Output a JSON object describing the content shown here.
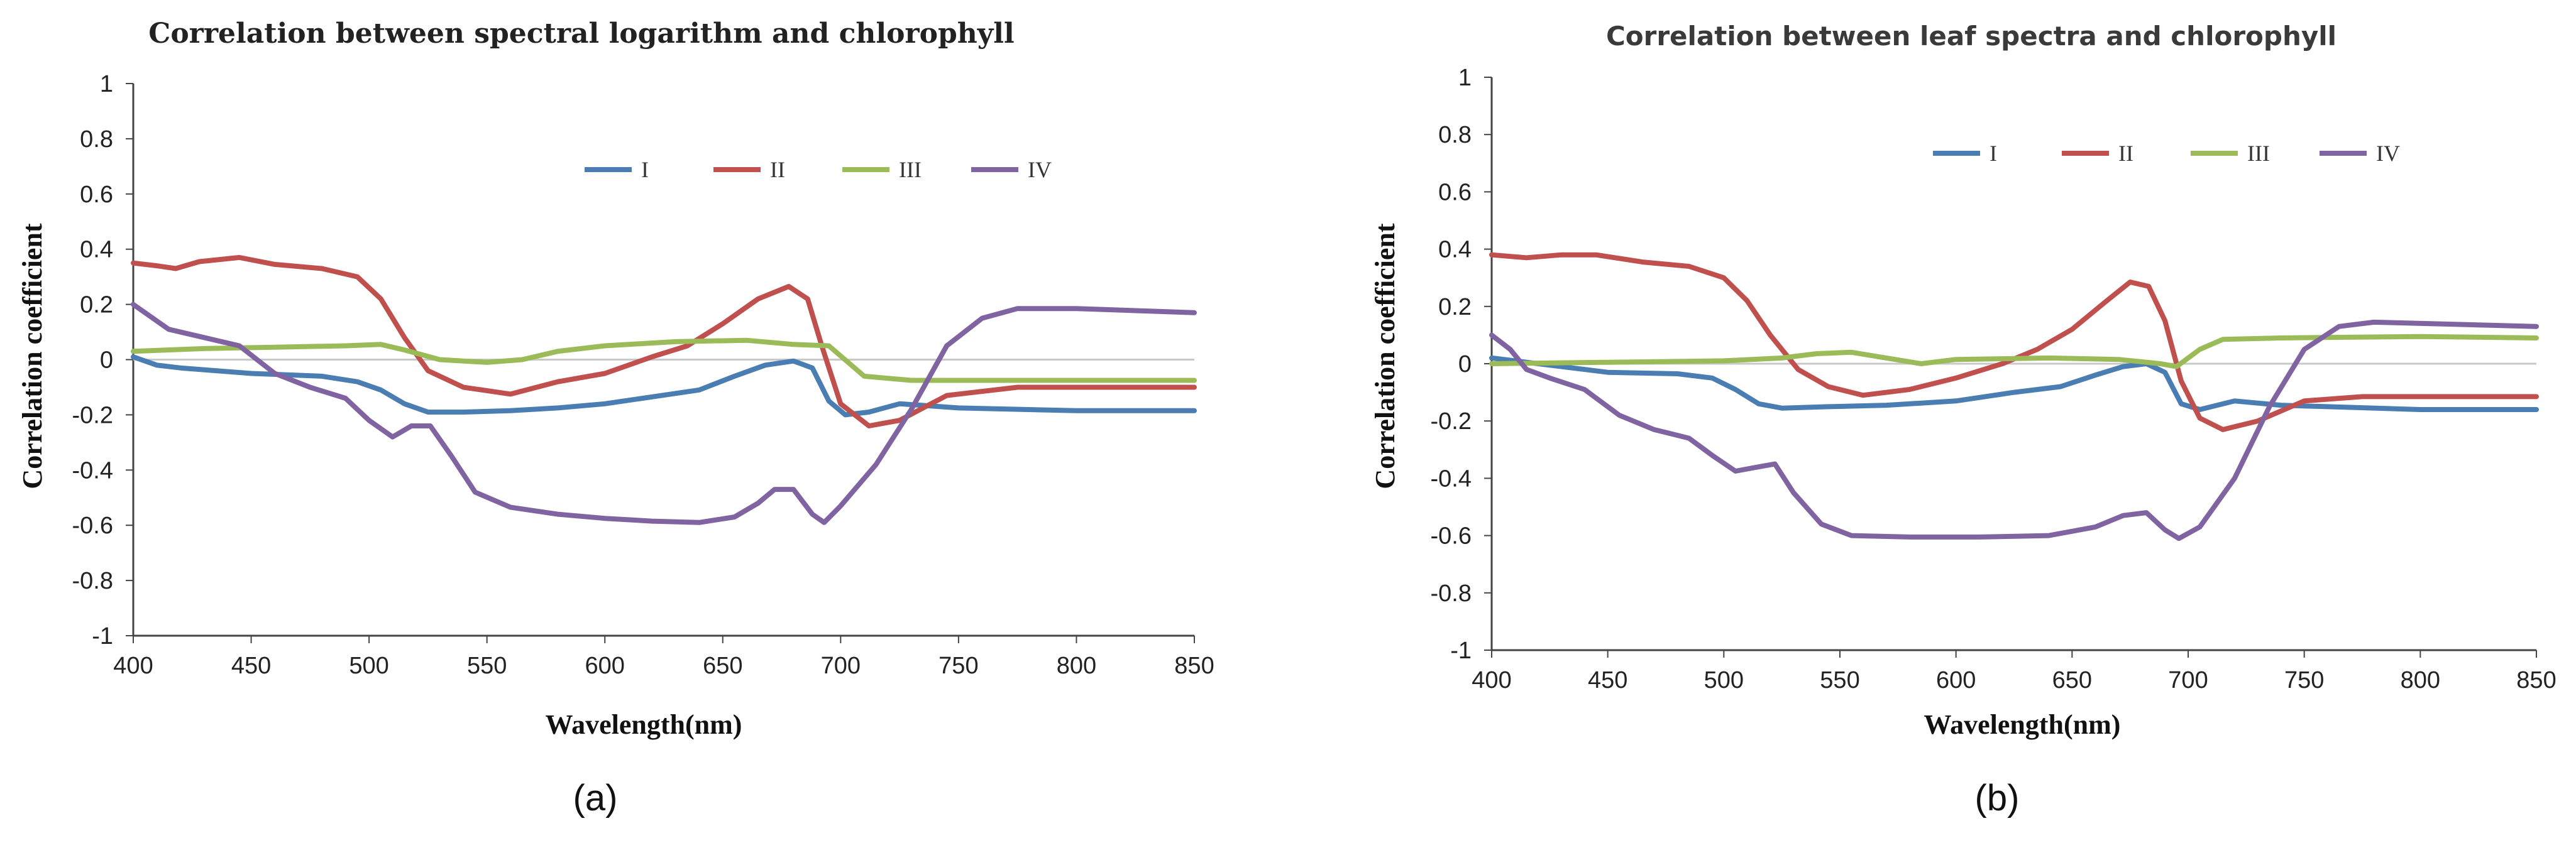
{
  "colors": {
    "I": "#4a7eb3",
    "II": "#c0504d",
    "III": "#9bbb59",
    "IV": "#8064a2",
    "zero_line": "#c8c8c8",
    "axis": "#444444"
  },
  "chart_data": [
    {
      "type": "line",
      "panel_label": "(a)",
      "title": "Correlation between spectral logarithm and chlorophyll",
      "xlabel": "Wavelength(nm)",
      "ylabel": "Correlation coefficient",
      "xlim": [
        400,
        850
      ],
      "ylim": [
        -1,
        1
      ],
      "xticks": [
        400,
        450,
        500,
        550,
        600,
        650,
        700,
        750,
        800,
        850
      ],
      "yticks": [
        1,
        0.8,
        0.6,
        0.4,
        0.2,
        0,
        -0.2,
        -0.4,
        -0.6,
        -0.8,
        -1
      ],
      "legend_position": "top-right",
      "grid": false,
      "series": [
        {
          "name": "I",
          "points": [
            [
              400,
              0.01
            ],
            [
              410,
              -0.02
            ],
            [
              420,
              -0.03
            ],
            [
              450,
              -0.05
            ],
            [
              480,
              -0.06
            ],
            [
              495,
              -0.08
            ],
            [
              505,
              -0.11
            ],
            [
              515,
              -0.16
            ],
            [
              525,
              -0.19
            ],
            [
              540,
              -0.19
            ],
            [
              560,
              -0.185
            ],
            [
              580,
              -0.175
            ],
            [
              600,
              -0.16
            ],
            [
              620,
              -0.135
            ],
            [
              640,
              -0.11
            ],
            [
              655,
              -0.06
            ],
            [
              668,
              -0.02
            ],
            [
              680,
              -0.005
            ],
            [
              688,
              -0.03
            ],
            [
              695,
              -0.15
            ],
            [
              702,
              -0.2
            ],
            [
              712,
              -0.19
            ],
            [
              725,
              -0.16
            ],
            [
              750,
              -0.175
            ],
            [
              800,
              -0.185
            ],
            [
              850,
              -0.185
            ]
          ]
        },
        {
          "name": "II",
          "points": [
            [
              400,
              0.35
            ],
            [
              410,
              0.34
            ],
            [
              418,
              0.33
            ],
            [
              428,
              0.355
            ],
            [
              445,
              0.37
            ],
            [
              460,
              0.345
            ],
            [
              480,
              0.33
            ],
            [
              495,
              0.3
            ],
            [
              505,
              0.22
            ],
            [
              515,
              0.08
            ],
            [
              525,
              -0.04
            ],
            [
              540,
              -0.1
            ],
            [
              560,
              -0.125
            ],
            [
              580,
              -0.08
            ],
            [
              600,
              -0.05
            ],
            [
              620,
              0.01
            ],
            [
              635,
              0.05
            ],
            [
              650,
              0.13
            ],
            [
              665,
              0.22
            ],
            [
              678,
              0.265
            ],
            [
              686,
              0.22
            ],
            [
              692,
              0.05
            ],
            [
              700,
              -0.16
            ],
            [
              712,
              -0.24
            ],
            [
              725,
              -0.22
            ],
            [
              745,
              -0.13
            ],
            [
              775,
              -0.1
            ],
            [
              850,
              -0.1
            ]
          ]
        },
        {
          "name": "III",
          "points": [
            [
              400,
              0.03
            ],
            [
              430,
              0.04
            ],
            [
              460,
              0.045
            ],
            [
              490,
              0.05
            ],
            [
              505,
              0.055
            ],
            [
              515,
              0.035
            ],
            [
              530,
              0.0
            ],
            [
              550,
              -0.01
            ],
            [
              565,
              0.0
            ],
            [
              580,
              0.03
            ],
            [
              600,
              0.05
            ],
            [
              630,
              0.065
            ],
            [
              660,
              0.07
            ],
            [
              680,
              0.055
            ],
            [
              695,
              0.05
            ],
            [
              710,
              -0.06
            ],
            [
              730,
              -0.075
            ],
            [
              800,
              -0.075
            ],
            [
              850,
              -0.075
            ]
          ]
        },
        {
          "name": "IV",
          "points": [
            [
              400,
              0.2
            ],
            [
              415,
              0.11
            ],
            [
              430,
              0.08
            ],
            [
              445,
              0.05
            ],
            [
              460,
              -0.05
            ],
            [
              475,
              -0.1
            ],
            [
              490,
              -0.14
            ],
            [
              500,
              -0.22
            ],
            [
              510,
              -0.28
            ],
            [
              518,
              -0.24
            ],
            [
              526,
              -0.24
            ],
            [
              535,
              -0.35
            ],
            [
              545,
              -0.48
            ],
            [
              560,
              -0.535
            ],
            [
              580,
              -0.56
            ],
            [
              600,
              -0.575
            ],
            [
              620,
              -0.585
            ],
            [
              640,
              -0.59
            ],
            [
              655,
              -0.57
            ],
            [
              665,
              -0.52
            ],
            [
              672,
              -0.47
            ],
            [
              680,
              -0.47
            ],
            [
              688,
              -0.56
            ],
            [
              693,
              -0.59
            ],
            [
              700,
              -0.53
            ],
            [
              715,
              -0.38
            ],
            [
              730,
              -0.18
            ],
            [
              745,
              0.05
            ],
            [
              760,
              0.15
            ],
            [
              775,
              0.185
            ],
            [
              800,
              0.185
            ],
            [
              850,
              0.17
            ]
          ]
        }
      ]
    },
    {
      "type": "line",
      "panel_label": "(b)",
      "title": "Correlation between leaf spectra and chlorophyll",
      "xlabel": "Wavelength(nm)",
      "ylabel": "Correlation coefficient",
      "xlim": [
        400,
        850
      ],
      "ylim": [
        -1,
        1
      ],
      "xticks": [
        400,
        450,
        500,
        550,
        600,
        650,
        700,
        750,
        800,
        850
      ],
      "yticks": [
        1,
        0.8,
        0.6,
        0.4,
        0.2,
        0,
        -0.2,
        -0.4,
        -0.6,
        -0.8,
        -1
      ],
      "legend_position": "top-right",
      "grid": false,
      "series": [
        {
          "name": "I",
          "points": [
            [
              400,
              0.02
            ],
            [
              420,
              0.0
            ],
            [
              450,
              -0.03
            ],
            [
              480,
              -0.035
            ],
            [
              495,
              -0.05
            ],
            [
              505,
              -0.09
            ],
            [
              515,
              -0.14
            ],
            [
              525,
              -0.155
            ],
            [
              545,
              -0.15
            ],
            [
              570,
              -0.145
            ],
            [
              600,
              -0.13
            ],
            [
              625,
              -0.1
            ],
            [
              645,
              -0.08
            ],
            [
              660,
              -0.04
            ],
            [
              672,
              -0.01
            ],
            [
              682,
              0.0
            ],
            [
              690,
              -0.03
            ],
            [
              697,
              -0.14
            ],
            [
              705,
              -0.16
            ],
            [
              720,
              -0.13
            ],
            [
              740,
              -0.145
            ],
            [
              800,
              -0.16
            ],
            [
              850,
              -0.16
            ]
          ]
        },
        {
          "name": "II",
          "points": [
            [
              400,
              0.38
            ],
            [
              415,
              0.37
            ],
            [
              430,
              0.38
            ],
            [
              445,
              0.38
            ],
            [
              465,
              0.355
            ],
            [
              485,
              0.34
            ],
            [
              500,
              0.3
            ],
            [
              510,
              0.22
            ],
            [
              520,
              0.1
            ],
            [
              532,
              -0.02
            ],
            [
              545,
              -0.08
            ],
            [
              560,
              -0.11
            ],
            [
              580,
              -0.09
            ],
            [
              600,
              -0.05
            ],
            [
              620,
              0.0
            ],
            [
              635,
              0.05
            ],
            [
              650,
              0.12
            ],
            [
              665,
              0.22
            ],
            [
              675,
              0.285
            ],
            [
              683,
              0.27
            ],
            [
              690,
              0.15
            ],
            [
              697,
              -0.06
            ],
            [
              705,
              -0.19
            ],
            [
              715,
              -0.23
            ],
            [
              730,
              -0.2
            ],
            [
              750,
              -0.13
            ],
            [
              775,
              -0.115
            ],
            [
              850,
              -0.115
            ]
          ]
        },
        {
          "name": "III",
          "points": [
            [
              400,
              0.0
            ],
            [
              450,
              0.005
            ],
            [
              500,
              0.01
            ],
            [
              525,
              0.02
            ],
            [
              540,
              0.035
            ],
            [
              555,
              0.04
            ],
            [
              570,
              0.02
            ],
            [
              585,
              0.0
            ],
            [
              600,
              0.015
            ],
            [
              640,
              0.02
            ],
            [
              670,
              0.015
            ],
            [
              688,
              0.0
            ],
            [
              695,
              -0.01
            ],
            [
              705,
              0.05
            ],
            [
              715,
              0.085
            ],
            [
              740,
              0.09
            ],
            [
              800,
              0.095
            ],
            [
              850,
              0.09
            ]
          ]
        },
        {
          "name": "IV",
          "points": [
            [
              400,
              0.1
            ],
            [
              408,
              0.05
            ],
            [
              415,
              -0.02
            ],
            [
              425,
              -0.05
            ],
            [
              440,
              -0.09
            ],
            [
              455,
              -0.18
            ],
            [
              470,
              -0.23
            ],
            [
              485,
              -0.26
            ],
            [
              495,
              -0.32
            ],
            [
              505,
              -0.375
            ],
            [
              515,
              -0.36
            ],
            [
              522,
              -0.35
            ],
            [
              530,
              -0.45
            ],
            [
              542,
              -0.56
            ],
            [
              555,
              -0.6
            ],
            [
              580,
              -0.605
            ],
            [
              610,
              -0.605
            ],
            [
              640,
              -0.6
            ],
            [
              660,
              -0.57
            ],
            [
              672,
              -0.53
            ],
            [
              682,
              -0.52
            ],
            [
              690,
              -0.58
            ],
            [
              696,
              -0.61
            ],
            [
              705,
              -0.57
            ],
            [
              720,
              -0.4
            ],
            [
              735,
              -0.15
            ],
            [
              750,
              0.05
            ],
            [
              765,
              0.13
            ],
            [
              780,
              0.145
            ],
            [
              850,
              0.13
            ]
          ]
        }
      ]
    }
  ]
}
